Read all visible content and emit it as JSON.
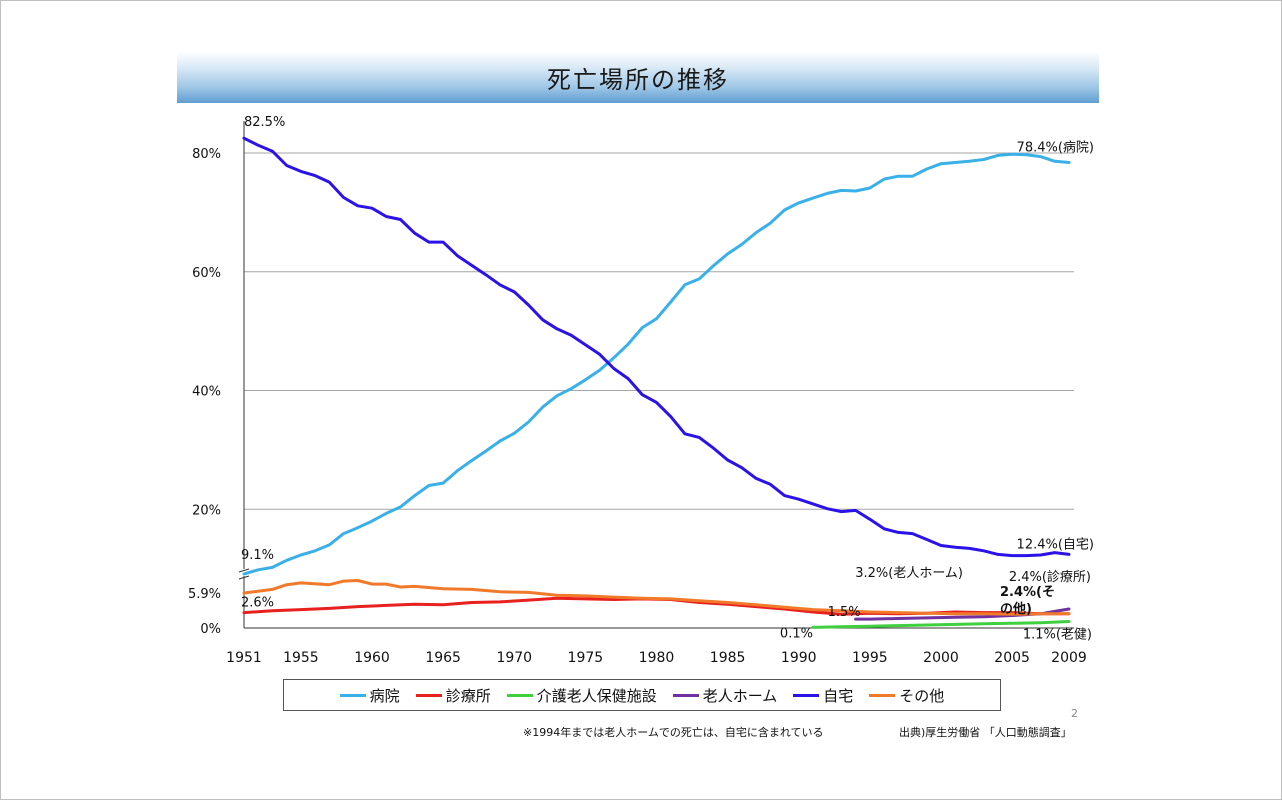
{
  "title": "死亡場所の推移",
  "page_number": "2",
  "note": "※1994年までは老人ホームでの死亡は、自宅に含まれている",
  "source": "出典)厚生労働省 「人口動態調査」",
  "chart_data": {
    "type": "line",
    "title": "死亡場所の推移",
    "xlabel": "",
    "ylabel": "",
    "xlim": [
      1951,
      2009
    ],
    "ylim": [
      0,
      80
    ],
    "grid": true,
    "legend_position": "bottom",
    "y_ticks": [
      {
        "value": 0,
        "label": "0%"
      },
      {
        "value": 5.9,
        "label": "5.9%"
      },
      {
        "value": 20,
        "label": "20%"
      },
      {
        "value": 40,
        "label": "40%"
      },
      {
        "value": 60,
        "label": "60%"
      },
      {
        "value": 80,
        "label": "80%"
      }
    ],
    "x_ticks": [
      {
        "value": 1951,
        "label": "1951"
      },
      {
        "value": 1955,
        "label": "1955"
      },
      {
        "value": 1960,
        "label": "1960"
      },
      {
        "value": 1965,
        "label": "1965"
      },
      {
        "value": 1970,
        "label": "1970"
      },
      {
        "value": 1975,
        "label": "1975"
      },
      {
        "value": 1980,
        "label": "1980"
      },
      {
        "value": 1985,
        "label": "1985"
      },
      {
        "value": 1990,
        "label": "1990"
      },
      {
        "value": 1995,
        "label": "1995"
      },
      {
        "value": 2000,
        "label": "2000"
      },
      {
        "value": 2005,
        "label": "2005"
      },
      {
        "value": 2009,
        "label": "2009"
      }
    ],
    "series": [
      {
        "name": "病院",
        "color": "#3ab0e8",
        "x": [
          1951,
          1952,
          1953,
          1954,
          1955,
          1956,
          1957,
          1958,
          1959,
          1960,
          1961,
          1962,
          1963,
          1964,
          1965,
          1966,
          1967,
          1968,
          1969,
          1970,
          1971,
          1972,
          1973,
          1974,
          1975,
          1976,
          1977,
          1978,
          1979,
          1980,
          1981,
          1982,
          1983,
          1984,
          1985,
          1986,
          1987,
          1988,
          1989,
          1990,
          1991,
          1992,
          1993,
          1994,
          1995,
          1996,
          1997,
          1998,
          1999,
          2000,
          2001,
          2002,
          2003,
          2004,
          2005,
          2006,
          2007,
          2008,
          2009
        ],
        "values": [
          9.1,
          9.8,
          10.2,
          11.4,
          12.3,
          13.0,
          14.0,
          15.9,
          16.9,
          18.0,
          19.3,
          20.4,
          22.3,
          24.0,
          24.4,
          26.5,
          28.2,
          29.8,
          31.5,
          32.8,
          34.7,
          37.2,
          39.1,
          40.3,
          41.8,
          43.4,
          45.5,
          47.8,
          50.6,
          52.1,
          54.9,
          57.8,
          58.8,
          61.0,
          63.0,
          64.6,
          66.6,
          68.2,
          70.4,
          71.6,
          72.4,
          73.2,
          73.7,
          73.6,
          74.1,
          75.6,
          76.1,
          76.1,
          77.3,
          78.2,
          78.4,
          78.6,
          78.9,
          79.6,
          79.8,
          79.7,
          79.4,
          78.6,
          78.4
        ]
      },
      {
        "name": "診療所",
        "color": "#e8211e",
        "x": [
          1951,
          1953,
          1955,
          1957,
          1959,
          1961,
          1963,
          1965,
          1967,
          1969,
          1971,
          1973,
          1975,
          1977,
          1979,
          1981,
          1983,
          1985,
          1987,
          1989,
          1991,
          1993,
          1995,
          1997,
          1999,
          2001,
          2003,
          2005,
          2007,
          2009
        ],
        "values": [
          2.6,
          2.9,
          3.1,
          3.3,
          3.6,
          3.8,
          4.0,
          3.9,
          4.3,
          4.4,
          4.7,
          5.0,
          4.9,
          4.8,
          4.9,
          4.8,
          4.3,
          4.0,
          3.6,
          3.2,
          2.7,
          2.3,
          2.5,
          2.4,
          2.5,
          2.7,
          2.6,
          2.6,
          2.4,
          2.4
        ]
      },
      {
        "name": "介護老人保健施設",
        "color": "#3fcf3f",
        "x": [
          1991,
          1993,
          1995,
          1997,
          1999,
          2001,
          2003,
          2005,
          2007,
          2009
        ],
        "values": [
          0.1,
          0.2,
          0.3,
          0.4,
          0.5,
          0.6,
          0.7,
          0.8,
          0.9,
          1.1
        ]
      },
      {
        "name": "老人ホーム",
        "color": "#7030a0",
        "x": [
          1994,
          1995,
          1997,
          1999,
          2001,
          2003,
          2005,
          2007,
          2008,
          2009
        ],
        "values": [
          1.5,
          1.5,
          1.6,
          1.7,
          1.8,
          1.9,
          2.1,
          2.4,
          2.8,
          3.2
        ]
      },
      {
        "name": "自宅",
        "color": "#2a12e8",
        "x": [
          1951,
          1952,
          1953,
          1954,
          1955,
          1956,
          1957,
          1958,
          1959,
          1960,
          1961,
          1962,
          1963,
          1964,
          1965,
          1966,
          1967,
          1968,
          1969,
          1970,
          1971,
          1972,
          1973,
          1974,
          1975,
          1976,
          1977,
          1978,
          1979,
          1980,
          1981,
          1982,
          1983,
          1984,
          1985,
          1986,
          1987,
          1988,
          1989,
          1990,
          1991,
          1992,
          1993,
          1994,
          1995,
          1996,
          1997,
          1998,
          1999,
          2000,
          2001,
          2002,
          2003,
          2004,
          2005,
          2006,
          2007,
          2008,
          2009
        ],
        "values": [
          82.5,
          81.3,
          80.3,
          77.9,
          76.9,
          76.2,
          75.1,
          72.5,
          71.1,
          70.7,
          69.3,
          68.8,
          66.5,
          65.0,
          65.0,
          62.7,
          61.1,
          59.5,
          57.8,
          56.6,
          54.4,
          51.9,
          50.4,
          49.3,
          47.7,
          46.1,
          43.7,
          42.0,
          39.3,
          38.0,
          35.6,
          32.7,
          32.1,
          30.3,
          28.3,
          27.0,
          25.2,
          24.2,
          22.3,
          21.7,
          20.9,
          20.1,
          19.6,
          19.8,
          18.3,
          16.7,
          16.1,
          15.9,
          14.9,
          13.9,
          13.6,
          13.4,
          13.0,
          12.4,
          12.2,
          12.2,
          12.3,
          12.7,
          12.4
        ]
      },
      {
        "name": "その他",
        "color": "#f07a2a",
        "x": [
          1951,
          1953,
          1954,
          1955,
          1957,
          1958,
          1959,
          1960,
          1961,
          1962,
          1963,
          1965,
          1967,
          1969,
          1971,
          1973,
          1975,
          1977,
          1979,
          1981,
          1983,
          1985,
          1987,
          1989,
          1991,
          1993,
          1995,
          1997,
          1999,
          2001,
          2003,
          2005,
          2007,
          2009
        ],
        "values": [
          5.9,
          6.5,
          7.3,
          7.6,
          7.3,
          7.9,
          8.0,
          7.4,
          7.4,
          6.9,
          7.0,
          6.6,
          6.5,
          6.1,
          6.0,
          5.5,
          5.4,
          5.2,
          5.0,
          4.9,
          4.6,
          4.3,
          3.9,
          3.5,
          3.1,
          2.9,
          2.7,
          2.6,
          2.5,
          2.4,
          2.4,
          2.3,
          2.4,
          2.4
        ]
      }
    ],
    "annotations": [
      {
        "text": "82.5%",
        "x": 1951,
        "y": 82.5
      },
      {
        "text": "9.1%",
        "x": 1951,
        "y": 9.1
      },
      {
        "text": "2.6%",
        "x": 1951,
        "y": 2.6
      },
      {
        "text": "78.4%(病院)",
        "x": 2009,
        "y": 78.4
      },
      {
        "text": "12.4%(自宅)",
        "x": 2009,
        "y": 12.4
      },
      {
        "text": "3.2%(老人ホーム)",
        "x": 2009,
        "y": 3.2
      },
      {
        "text": "2.4%(診療所)",
        "x": 2009,
        "y": 2.4
      },
      {
        "text": "2.4%(その他)",
        "x": 2009,
        "y": 2.4
      },
      {
        "text": "1.5%",
        "x": 1994,
        "y": 1.5
      },
      {
        "text": "0.1%",
        "x": 1991,
        "y": 0.1
      },
      {
        "text": "1.1%(老健)",
        "x": 2009,
        "y": 1.1
      }
    ]
  }
}
